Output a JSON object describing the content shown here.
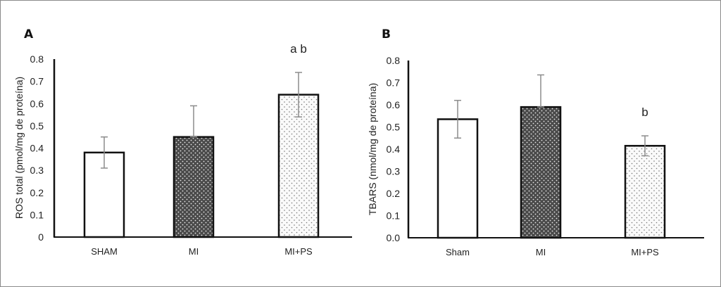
{
  "chart_data": [
    {
      "type": "bar",
      "panel_label": "A",
      "ylabel": "ROS total (pmol/mg de  proteína)",
      "categories": [
        "SHAM",
        "MI",
        "MI+PS"
      ],
      "values": [
        0.38,
        0.45,
        0.64
      ],
      "error_low": [
        0.31,
        0.45,
        0.54
      ],
      "error_high": [
        0.45,
        0.59,
        0.74
      ],
      "annotations": [
        "",
        "",
        "a b"
      ],
      "ylim": [
        0,
        0.8
      ],
      "yticks": [
        "0",
        "0.1",
        "0.2",
        "0.3",
        "0.4",
        "0.5",
        "0.6",
        "0.7",
        "0.8"
      ],
      "grid": false
    },
    {
      "type": "bar",
      "panel_label": "B",
      "ylabel": "TBARS (nmol/mg de  proteína)",
      "categories": [
        "Sham",
        "MI",
        "MI+PS"
      ],
      "values": [
        0.535,
        0.59,
        0.415
      ],
      "error_low": [
        0.45,
        0.59,
        0.37
      ],
      "error_high": [
        0.62,
        0.735,
        0.46
      ],
      "annotations": [
        "",
        "",
        "b"
      ],
      "ylim": [
        0,
        0.8
      ],
      "yticks": [
        "0.0",
        "0.1",
        "0.2",
        "0.3",
        "0.4",
        "0.5",
        "0.6",
        "0.7",
        "0.8"
      ],
      "grid": false
    }
  ],
  "colors": {
    "bar_outline": "#111111",
    "sham_fill": "#ffffff",
    "mi_fill": "#4a4a4a",
    "mips_fill": "#f4f4f4",
    "error_bar": "#8c8c8c"
  }
}
